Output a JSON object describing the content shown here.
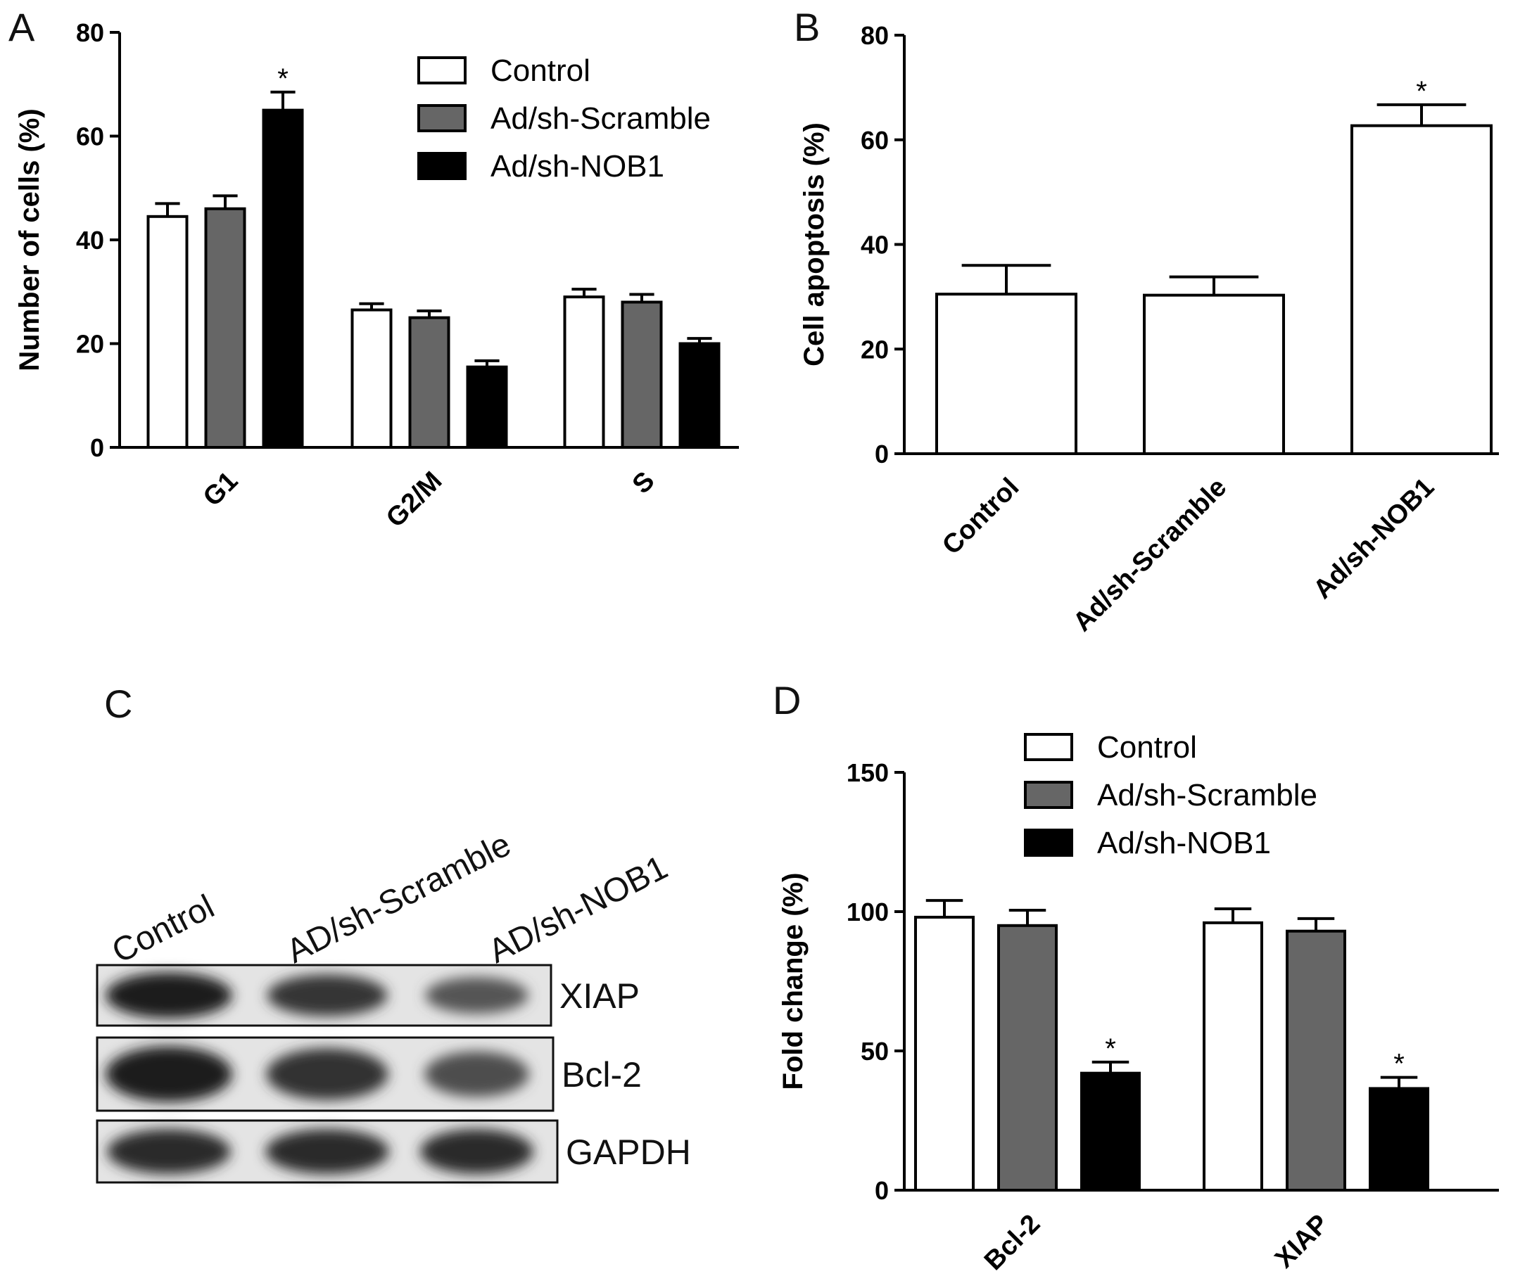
{
  "colors": {
    "Control": "#ffffff",
    "Ad/sh-Scramble": "#666666",
    "Ad/sh-NOB1": "#000000"
  },
  "chart_data": [
    {
      "panel": "A",
      "type": "bar",
      "ylabel": "Number of cells (%)",
      "ylim": [
        0,
        80
      ],
      "yticks": [
        0,
        20,
        40,
        60,
        80
      ],
      "categories": [
        "G1",
        "G2/M",
        "S"
      ],
      "legend": "top-right",
      "series": [
        {
          "name": "Control",
          "values": [
            44.5,
            26.5,
            29
          ],
          "errors": [
            2.5,
            1.2,
            1.5
          ]
        },
        {
          "name": "Ad/sh-Scramble",
          "values": [
            46,
            25,
            28
          ],
          "errors": [
            2.5,
            1.3,
            1.5
          ]
        },
        {
          "name": "Ad/sh-NOB1",
          "values": [
            65,
            15.5,
            20
          ],
          "errors": [
            3.5,
            1.2,
            1.0
          ]
        }
      ],
      "annotations": [
        {
          "category": "G1",
          "series": "Ad/sh-NOB1",
          "text": "*"
        }
      ]
    },
    {
      "panel": "B",
      "type": "bar",
      "ylabel": "Cell apoptosis (%)",
      "ylim": [
        0,
        80
      ],
      "yticks": [
        0,
        20,
        40,
        60,
        80
      ],
      "categories": [
        "Control",
        "Ad/sh-Scramble",
        "Ad/sh-NOB1"
      ],
      "series": [
        {
          "values": [
            30.5,
            30.3,
            62.7
          ],
          "errors": [
            5.5,
            3.5,
            4.0
          ]
        }
      ],
      "annotations": [
        {
          "category": "Ad/sh-NOB1",
          "text": "*"
        }
      ]
    },
    {
      "panel": "D",
      "type": "bar",
      "ylabel": "Fold change (%)",
      "ylim": [
        0,
        150
      ],
      "yticks": [
        0,
        50,
        100,
        150
      ],
      "categories": [
        "Bcl-2",
        "XIAP"
      ],
      "legend": "top-right",
      "series": [
        {
          "name": "Control",
          "values": [
            98,
            96
          ],
          "errors": [
            6,
            5
          ]
        },
        {
          "name": "Ad/sh-Scramble",
          "values": [
            95,
            93
          ],
          "errors": [
            5.5,
            4.5
          ]
        },
        {
          "name": "Ad/sh-NOB1",
          "values": [
            42,
            36.5
          ],
          "errors": [
            4,
            4
          ]
        }
      ],
      "annotations": [
        {
          "category": "Bcl-2",
          "series": "Ad/sh-NOB1",
          "text": "*"
        },
        {
          "category": "XIAP",
          "series": "Ad/sh-NOB1",
          "text": "*"
        }
      ]
    }
  ],
  "blot": {
    "panel": "C",
    "lanes": [
      "Control",
      "AD/sh-Scramble",
      "AD/sh-NOB1"
    ],
    "rows": [
      {
        "label": "XIAP",
        "intensity": [
          1.0,
          0.8,
          0.55
        ]
      },
      {
        "label": "Bcl-2",
        "intensity": [
          1.0,
          0.85,
          0.6
        ]
      },
      {
        "label": "GAPDH",
        "intensity": [
          0.9,
          0.9,
          0.9
        ]
      }
    ]
  }
}
